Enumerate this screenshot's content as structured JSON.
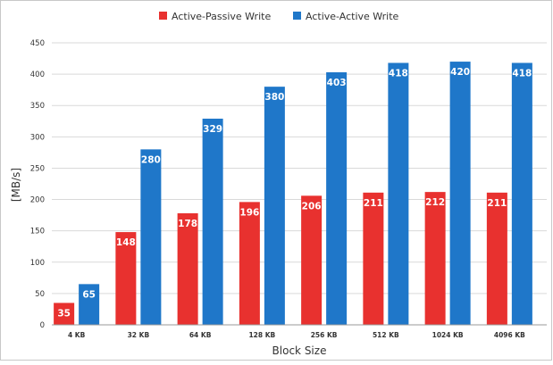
{
  "chart_data": {
    "type": "bar",
    "title": "",
    "xlabel": "Block Size",
    "ylabel": "[MB/s]",
    "categories": [
      "4 KB",
      "32 KB",
      "64 KB",
      "128 KB",
      "256 KB",
      "512 KB",
      "1024 KB",
      "4096 KB"
    ],
    "series": [
      {
        "name": "Active-Passive Write",
        "color": "#e8312f",
        "values": [
          35,
          148,
          178,
          196,
          206,
          211,
          212,
          211
        ]
      },
      {
        "name": "Active-Active Write",
        "color": "#1f77c9",
        "values": [
          65,
          280,
          329,
          380,
          403,
          418,
          420,
          418
        ]
      }
    ],
    "ylim": [
      0,
      450
    ],
    "yticks": [
      0,
      50,
      100,
      150,
      200,
      250,
      300,
      350,
      400,
      450
    ],
    "grid": true,
    "legend": "top-center",
    "data_labels": true
  }
}
